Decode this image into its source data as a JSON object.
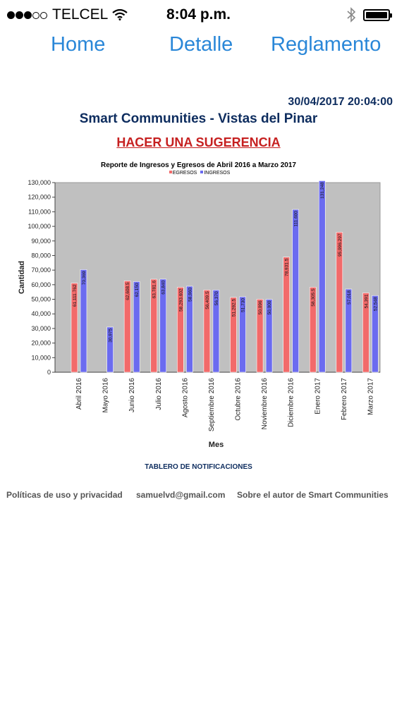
{
  "status_bar": {
    "carrier": "TELCEL",
    "time": "8:04 p.m.",
    "signal_icon": "signal-dots-icon",
    "wifi_icon": "wifi-icon",
    "bluetooth_icon": "bluetooth-icon",
    "battery_icon": "battery-icon"
  },
  "nav": {
    "items": [
      "Home",
      "Detalle",
      "Reglamento"
    ]
  },
  "header": {
    "timestamp": "30/04/2017 20:04:00",
    "site_title": "Smart Communities - Vistas del Pinar",
    "suggestion_link": "HACER UNA SUGERENCIA"
  },
  "chart_data": {
    "type": "bar",
    "title": "Reporte de Ingresos y Egresos de Abril 2016 a Marzo 2017",
    "xlabel": "Mes",
    "ylabel": "Cantidad",
    "ylim": [
      0,
      130000
    ],
    "yticks": [
      "0",
      "10,000",
      "20,000",
      "30,000",
      "40,000",
      "50,000",
      "60,000",
      "70,000",
      "80,000",
      "90,000",
      "100,000",
      "110,000",
      "120,000",
      "130,000"
    ],
    "categories": [
      "Abril 2016",
      "Mayo 2016",
      "Junio 2016",
      "Julio 2016",
      "Agosto 2016",
      "Septiembre 2016",
      "Octubre 2016",
      "Noviembre 2016",
      "Diciembre 2016",
      "Enero 2017",
      "Febrero 2017",
      "Marzo 2017"
    ],
    "series": [
      {
        "name": "EGRESOS",
        "color": "#f26a6a",
        "values": [
          61111.762,
          null,
          62608.5,
          63781.6,
          58293.602,
          56409.5,
          51292.5,
          50096,
          78931.5,
          58305.5,
          95996.297,
          54391
        ],
        "labels": [
          "61,111.762",
          "",
          "62,608.5",
          "63,781.6",
          "58,293.602",
          "56,409.5",
          "51,292.5",
          "50,096",
          "78,931.5",
          "58,305.5",
          "95,996.297",
          "54,391"
        ]
      },
      {
        "name": "INGRESOS",
        "color": "#6b6bf0",
        "values": [
          70369,
          30975,
          62150,
          63840,
          58960,
          56370,
          51730,
          50000,
          111600,
          131248,
          57018,
          52548
        ],
        "labels": [
          "70,369",
          "30,975",
          "62,150",
          "63,840",
          "58,960",
          "56,370",
          "51,730",
          "50,000",
          "111,600",
          "131,248",
          "57,018",
          "52,548"
        ]
      }
    ],
    "grid": false,
    "legend": "top-center",
    "plot_background": "#c0c0c0"
  },
  "notifications_label": "TABLERO DE NOTIFICACIONES",
  "footer": {
    "privacy": "Políticas de uso y privacidad",
    "email": "samuelvd@gmail.com",
    "about": "Sobre el autor de Smart Communities"
  }
}
